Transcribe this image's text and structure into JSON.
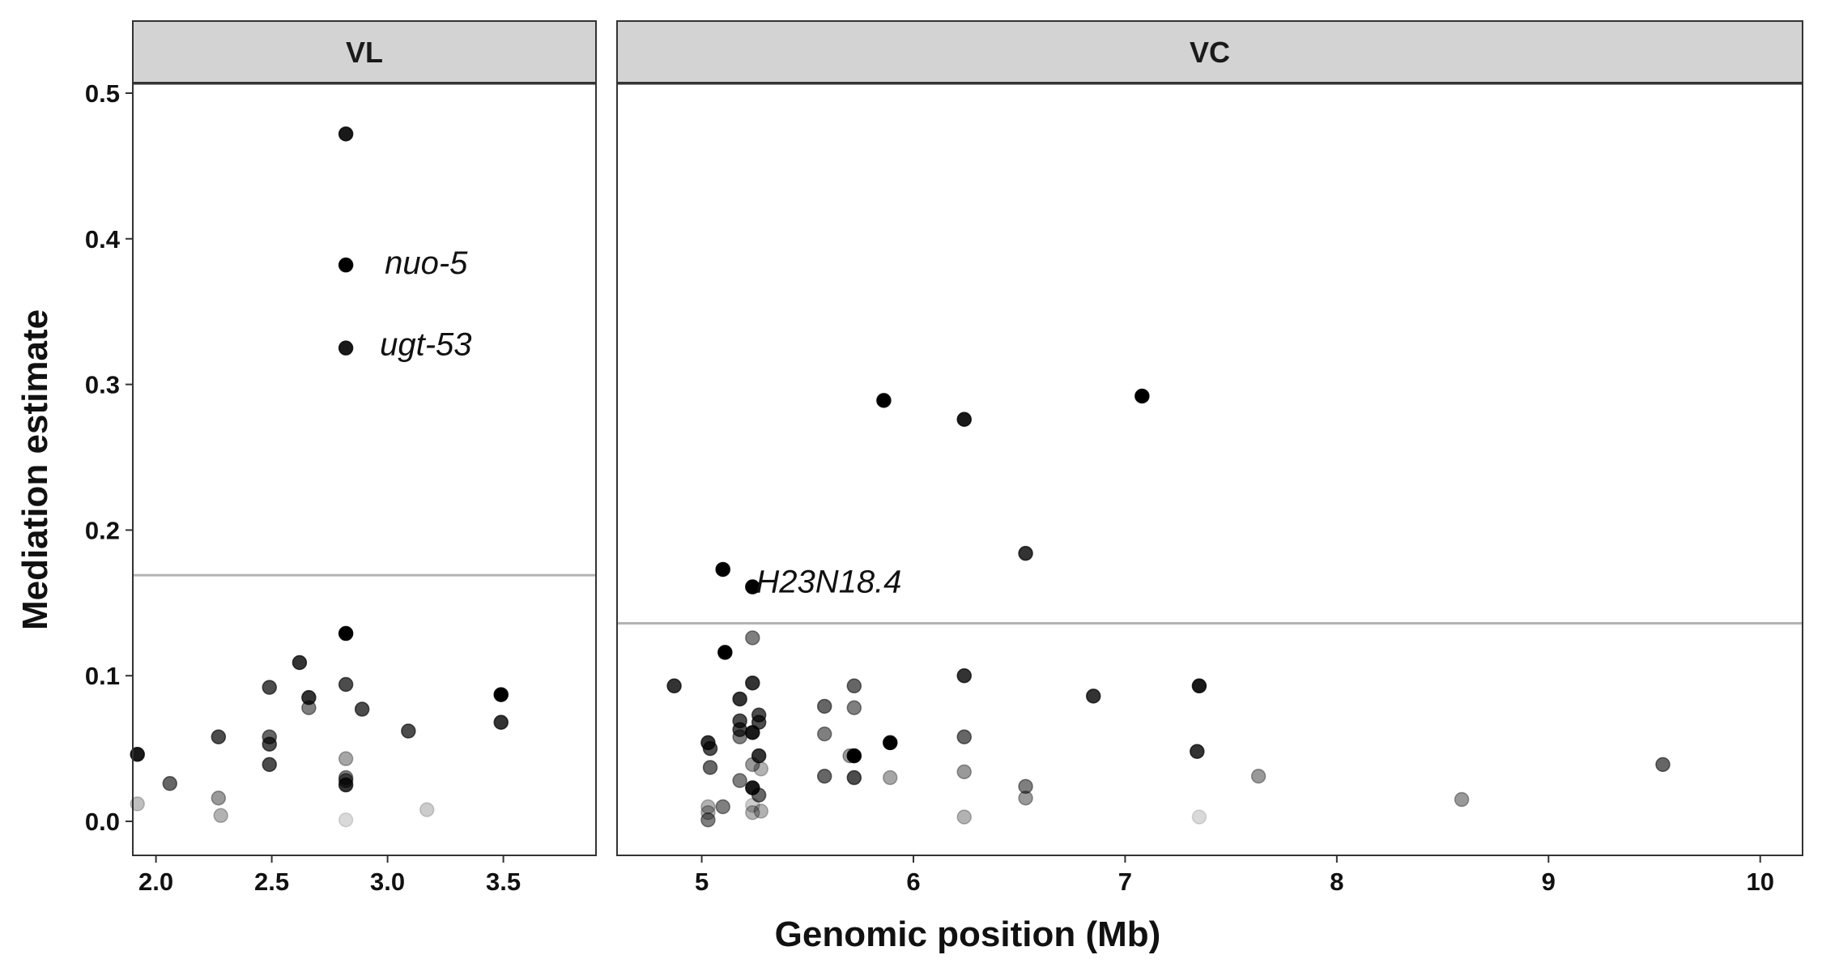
{
  "chart_data": {
    "type": "scatter",
    "title": "",
    "xlabel": "Genomic position (Mb)",
    "ylabel": "Mediation estimate",
    "ylim": [
      0,
      0.5
    ],
    "yticks": [
      "0.0",
      "0.1",
      "0.2",
      "0.3",
      "0.4",
      "0.5"
    ],
    "grid": false,
    "colors": {
      "point": "#000000",
      "threshold": "#b3b3b3",
      "strip": "#d3d3d3"
    },
    "panels": [
      {
        "name": "VL",
        "xlim": [
          1.9,
          3.9
        ],
        "xticks": [
          "2.0",
          "2.5",
          "3.0",
          "3.5"
        ],
        "threshold": 0.169,
        "points": [
          [
            2.82,
            0.472,
            0.9
          ],
          [
            2.82,
            0.382,
            1.0
          ],
          [
            2.82,
            0.325,
            0.9
          ],
          [
            2.82,
            0.129,
            1.0
          ],
          [
            2.62,
            0.109,
            0.8
          ],
          [
            2.49,
            0.092,
            0.7
          ],
          [
            2.82,
            0.094,
            0.7
          ],
          [
            2.66,
            0.085,
            0.8
          ],
          [
            2.66,
            0.078,
            0.5
          ],
          [
            2.89,
            0.077,
            0.7
          ],
          [
            3.49,
            0.087,
            1.0
          ],
          [
            3.49,
            0.068,
            0.8
          ],
          [
            3.09,
            0.062,
            0.7
          ],
          [
            2.27,
            0.058,
            0.7
          ],
          [
            2.49,
            0.058,
            0.6
          ],
          [
            2.49,
            0.053,
            0.7
          ],
          [
            1.92,
            0.046,
            0.9
          ],
          [
            2.82,
            0.043,
            0.35
          ],
          [
            2.49,
            0.039,
            0.7
          ],
          [
            2.82,
            0.03,
            0.5
          ],
          [
            2.82,
            0.028,
            0.55
          ],
          [
            2.82,
            0.025,
            0.8
          ],
          [
            2.06,
            0.026,
            0.6
          ],
          [
            2.27,
            0.016,
            0.4
          ],
          [
            1.92,
            0.012,
            0.25
          ],
          [
            3.17,
            0.008,
            0.2
          ],
          [
            2.28,
            0.004,
            0.3
          ],
          [
            2.82,
            0.001,
            0.15
          ]
        ],
        "labels": [
          {
            "text": "nuo-5",
            "x": 2.82,
            "y": 0.382
          },
          {
            "text": "ugt-53",
            "x": 2.82,
            "y": 0.325
          }
        ]
      },
      {
        "name": "VC",
        "xlim": [
          4.6,
          10.2
        ],
        "xticks": [
          "5",
          "6",
          "7",
          "8",
          "9",
          "10"
        ],
        "threshold": 0.136,
        "points": [
          [
            7.08,
            0.292,
            1.0
          ],
          [
            5.86,
            0.289,
            1.0
          ],
          [
            6.24,
            0.276,
            0.9
          ],
          [
            6.53,
            0.184,
            0.8
          ],
          [
            5.1,
            0.173,
            1.0
          ],
          [
            5.24,
            0.161,
            1.0
          ],
          [
            5.24,
            0.126,
            0.5
          ],
          [
            5.11,
            0.116,
            1.0
          ],
          [
            6.24,
            0.1,
            0.8
          ],
          [
            5.24,
            0.095,
            0.8
          ],
          [
            4.87,
            0.093,
            0.8
          ],
          [
            5.72,
            0.093,
            0.6
          ],
          [
            7.35,
            0.093,
            0.9
          ],
          [
            6.85,
            0.086,
            0.8
          ],
          [
            5.18,
            0.084,
            0.8
          ],
          [
            5.58,
            0.079,
            0.6
          ],
          [
            5.72,
            0.078,
            0.5
          ],
          [
            5.27,
            0.073,
            0.7
          ],
          [
            5.18,
            0.069,
            0.7
          ],
          [
            5.27,
            0.068,
            0.7
          ],
          [
            5.18,
            0.063,
            0.7
          ],
          [
            5.24,
            0.061,
            0.9
          ],
          [
            5.58,
            0.06,
            0.5
          ],
          [
            5.18,
            0.058,
            0.5
          ],
          [
            6.24,
            0.058,
            0.6
          ],
          [
            5.03,
            0.054,
            0.8
          ],
          [
            5.89,
            0.054,
            1.0
          ],
          [
            5.04,
            0.05,
            0.7
          ],
          [
            7.34,
            0.048,
            0.8
          ],
          [
            5.27,
            0.045,
            0.8
          ],
          [
            5.7,
            0.045,
            0.4
          ],
          [
            5.72,
            0.045,
            1.0
          ],
          [
            5.24,
            0.039,
            0.4
          ],
          [
            5.04,
            0.037,
            0.6
          ],
          [
            9.54,
            0.039,
            0.6
          ],
          [
            5.28,
            0.036,
            0.3
          ],
          [
            6.24,
            0.034,
            0.4
          ],
          [
            5.58,
            0.031,
            0.6
          ],
          [
            7.63,
            0.031,
            0.4
          ],
          [
            5.72,
            0.03,
            0.7
          ],
          [
            5.89,
            0.03,
            0.35
          ],
          [
            5.18,
            0.028,
            0.5
          ],
          [
            5.24,
            0.023,
            0.9
          ],
          [
            6.53,
            0.024,
            0.5
          ],
          [
            5.27,
            0.018,
            0.6
          ],
          [
            6.53,
            0.016,
            0.4
          ],
          [
            8.59,
            0.015,
            0.4
          ],
          [
            5.24,
            0.011,
            0.2
          ],
          [
            5.03,
            0.01,
            0.3
          ],
          [
            5.1,
            0.01,
            0.5
          ],
          [
            5.03,
            0.006,
            0.3
          ],
          [
            5.24,
            0.006,
            0.3
          ],
          [
            5.28,
            0.007,
            0.3
          ],
          [
            6.24,
            0.003,
            0.3
          ],
          [
            7.35,
            0.003,
            0.15
          ],
          [
            5.03,
            0.001,
            0.5
          ]
        ],
        "labels": [
          {
            "text": "H23N18.4",
            "x": 5.24,
            "y": 0.161
          }
        ]
      }
    ]
  }
}
